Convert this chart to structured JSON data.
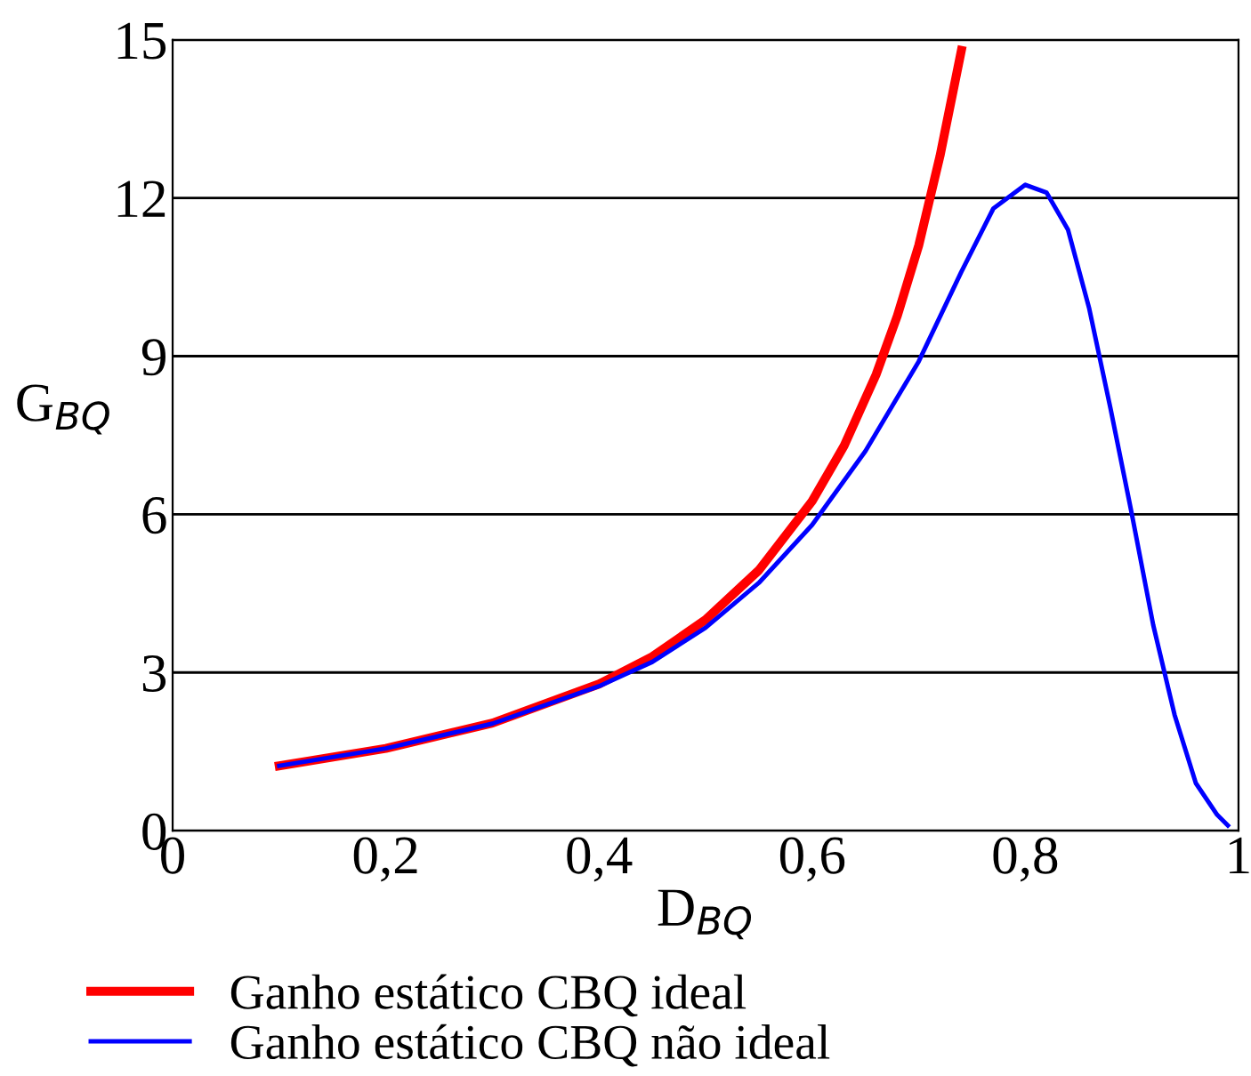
{
  "chart_data": {
    "type": "line",
    "xlabel": "D$_{BQ}$",
    "ylabel": "G$_{BQ}$",
    "xlim": [
      0,
      1
    ],
    "ylim": [
      0,
      15
    ],
    "xticks": [
      0,
      {
        "value": 0.2,
        "label": "0,2"
      },
      {
        "value": 0.4,
        "label": "0,4"
      },
      {
        "value": 0.6,
        "label": "0,6"
      },
      {
        "value": 0.8,
        "label": "0,8"
      },
      1
    ],
    "yticks": [
      0,
      3,
      6,
      9,
      12,
      15
    ],
    "grid": "y",
    "legend": "bottom",
    "line_style": "solid",
    "marker": "none",
    "series": [
      {
        "name": "Ganho estático CBQ ideal",
        "color": "#ff0000",
        "x": [
          0.1,
          0.2,
          0.3,
          0.4,
          0.45,
          0.5,
          0.55,
          0.6,
          0.63,
          0.66,
          0.68,
          0.7,
          0.72,
          0.74
        ],
        "values": [
          1.23,
          1.56,
          2.04,
          2.78,
          3.3,
          4.0,
          4.94,
          6.25,
          7.3,
          8.65,
          9.77,
          11.1,
          12.8,
          14.8
        ]
      },
      {
        "name": "Ganho estático CBQ não ideal",
        "color": "#0000ff",
        "x": [
          0.1,
          0.2,
          0.3,
          0.4,
          0.45,
          0.5,
          0.55,
          0.6,
          0.65,
          0.7,
          0.74,
          0.77,
          0.8,
          0.82,
          0.84,
          0.86,
          0.88,
          0.9,
          0.92,
          0.94,
          0.96,
          0.98,
          0.99
        ],
        "values": [
          1.23,
          1.56,
          2.03,
          2.74,
          3.2,
          3.85,
          4.7,
          5.8,
          7.2,
          8.9,
          10.6,
          11.8,
          12.25,
          12.1,
          11.4,
          9.9,
          8.0,
          6.0,
          3.9,
          2.2,
          0.9,
          0.3,
          0.1
        ]
      }
    ]
  }
}
